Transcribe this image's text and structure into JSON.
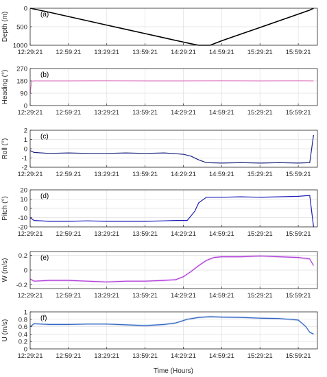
{
  "figure": {
    "xlabel": "Time (Hours)",
    "x_tick_labels": [
      "12:29:21",
      "12:59:21",
      "13:29:21",
      "13:59:21",
      "14:29:21",
      "14:59:21",
      "15:29:21",
      "15:59:21"
    ]
  },
  "chart_data": [
    {
      "type": "line",
      "panel_label": "(a)",
      "ylabel": "Depth (m)",
      "ylim": [
        0,
        1000
      ],
      "y_reversed": true,
      "yticks": [
        0,
        500,
        1000
      ],
      "grid": true,
      "color": "#000000",
      "x_unit": "hours since 12:29:21",
      "xlim": [
        0,
        3.75
      ],
      "x": [
        0,
        0.25,
        0.5,
        0.75,
        1.0,
        1.25,
        1.5,
        1.75,
        2.0,
        2.1,
        2.2,
        2.35,
        2.5,
        2.75,
        3.0,
        3.25,
        3.5,
        3.65,
        3.7
      ],
      "values": [
        0,
        110,
        225,
        340,
        455,
        570,
        685,
        800,
        915,
        960,
        1000,
        1000,
        880,
        700,
        520,
        340,
        160,
        50,
        0
      ]
    },
    {
      "type": "line",
      "panel_label": "(b)",
      "ylabel": "Heading (°)",
      "ylim": [
        0,
        270
      ],
      "yticks": [
        0,
        90,
        180,
        270
      ],
      "grid": true,
      "color": "#e07fc4",
      "xlim": [
        0,
        3.75
      ],
      "x": [
        0,
        0.02,
        0.04,
        0.5,
        1.0,
        1.5,
        2.0,
        2.5,
        3.0,
        3.5,
        3.7
      ],
      "values": [
        90,
        175,
        180,
        180,
        181,
        180,
        180,
        181,
        180,
        181,
        180
      ]
    },
    {
      "type": "line",
      "panel_label": "(c)",
      "ylabel": "Roll (°)",
      "ylim": [
        -2,
        2
      ],
      "yticks": [
        -2,
        -1,
        0,
        1,
        2
      ],
      "grid": true,
      "color": "#1a237e",
      "xlim": [
        0,
        3.75
      ],
      "x": [
        0,
        0.05,
        0.25,
        0.5,
        0.75,
        1.0,
        1.25,
        1.5,
        1.75,
        1.85,
        2.0,
        2.1,
        2.2,
        2.3,
        2.5,
        2.75,
        3.0,
        3.25,
        3.5,
        3.65,
        3.7
      ],
      "values": [
        -0.2,
        -0.4,
        -0.5,
        -0.45,
        -0.5,
        -0.5,
        -0.45,
        -0.5,
        -0.45,
        -0.5,
        -0.6,
        -0.8,
        -1.2,
        -1.5,
        -1.55,
        -1.5,
        -1.55,
        -1.5,
        -1.55,
        -1.5,
        1.5
      ]
    },
    {
      "type": "line",
      "panel_label": "(d)",
      "ylabel": "Pitch (°)",
      "ylim": [
        -20,
        20
      ],
      "yticks": [
        -20,
        -10,
        0,
        10,
        20
      ],
      "grid": true,
      "color": "#1a1ab8",
      "xlim": [
        0,
        3.75
      ],
      "x": [
        0,
        0.05,
        0.25,
        0.5,
        0.75,
        1.0,
        1.25,
        1.5,
        1.75,
        1.9,
        2.05,
        2.15,
        2.2,
        2.3,
        2.5,
        2.75,
        3.0,
        3.25,
        3.5,
        3.65,
        3.7
      ],
      "values": [
        -10,
        -13,
        -14,
        -14,
        -13.5,
        -14,
        -14,
        -14,
        -13.5,
        -13,
        -13,
        -3,
        6,
        12,
        12,
        12.5,
        12,
        12.5,
        13,
        14,
        -20
      ]
    },
    {
      "type": "line",
      "panel_label": "(e)",
      "ylabel": "W (m/s)",
      "ylim": [
        -0.25,
        0.25
      ],
      "yticks": [
        -0.2,
        0,
        0.2
      ],
      "grid": true,
      "color": "#b03ad8",
      "xlim": [
        0,
        3.75
      ],
      "x": [
        0,
        0.05,
        0.25,
        0.5,
        0.75,
        1.0,
        1.25,
        1.5,
        1.75,
        1.9,
        2.0,
        2.1,
        2.2,
        2.3,
        2.4,
        2.5,
        2.75,
        3.0,
        3.25,
        3.5,
        3.65,
        3.7
      ],
      "values": [
        -0.12,
        -0.15,
        -0.14,
        -0.14,
        -0.15,
        -0.16,
        -0.15,
        -0.15,
        -0.14,
        -0.13,
        -0.09,
        -0.02,
        0.06,
        0.13,
        0.17,
        0.18,
        0.18,
        0.19,
        0.18,
        0.17,
        0.15,
        0.06
      ]
    },
    {
      "type": "line",
      "panel_label": "(f)",
      "ylabel": "U (m/s)",
      "ylim": [
        0,
        1
      ],
      "yticks": [
        0,
        0.2,
        0.4,
        0.6,
        0.8,
        1
      ],
      "grid": true,
      "color": "#2f64c2",
      "xlim": [
        0,
        3.75
      ],
      "x": [
        0,
        0.05,
        0.25,
        0.5,
        0.75,
        1.0,
        1.25,
        1.5,
        1.75,
        1.9,
        2.05,
        2.2,
        2.35,
        2.5,
        2.75,
        3.0,
        3.25,
        3.5,
        3.6,
        3.65,
        3.7
      ],
      "values": [
        0.6,
        0.68,
        0.66,
        0.66,
        0.67,
        0.67,
        0.65,
        0.63,
        0.66,
        0.7,
        0.8,
        0.85,
        0.87,
        0.86,
        0.85,
        0.83,
        0.82,
        0.78,
        0.6,
        0.45,
        0.4
      ]
    }
  ]
}
